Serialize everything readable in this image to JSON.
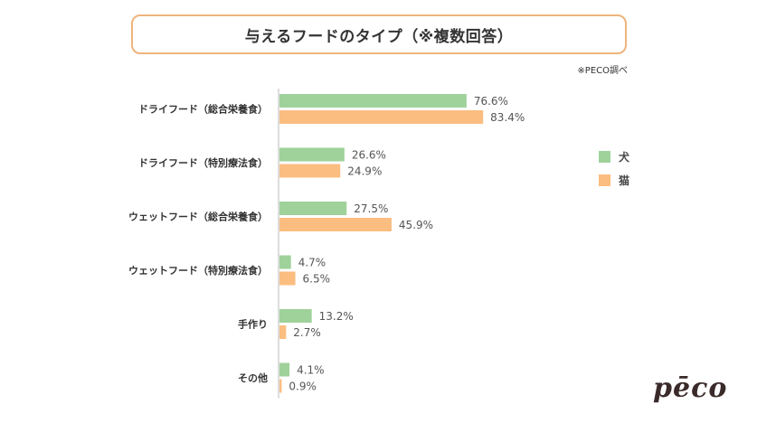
{
  "chart_data": {
    "type": "bar",
    "orientation": "horizontal",
    "title": "与えるフードのタイプ（※複数回答）",
    "source_note": "※PECO調べ",
    "categories": [
      "ドライフード（総合栄養食）",
      "ドライフード（特別療法食）",
      "ウェットフード（総合栄養食）",
      "ウェットフード（特別療法食）",
      "手作り",
      "その他"
    ],
    "series": [
      {
        "name": "犬",
        "color": "#9fd19a",
        "values": [
          76.6,
          26.6,
          27.5,
          4.7,
          13.2,
          4.1
        ]
      },
      {
        "name": "猫",
        "color": "#fbbd80",
        "values": [
          83.4,
          24.9,
          45.9,
          6.5,
          2.7,
          0.9
        ]
      }
    ],
    "value_suffix": "%",
    "xlim": [
      0,
      100
    ],
    "legend_position": "right",
    "grid": false
  },
  "logo": {
    "text": "pēco"
  }
}
